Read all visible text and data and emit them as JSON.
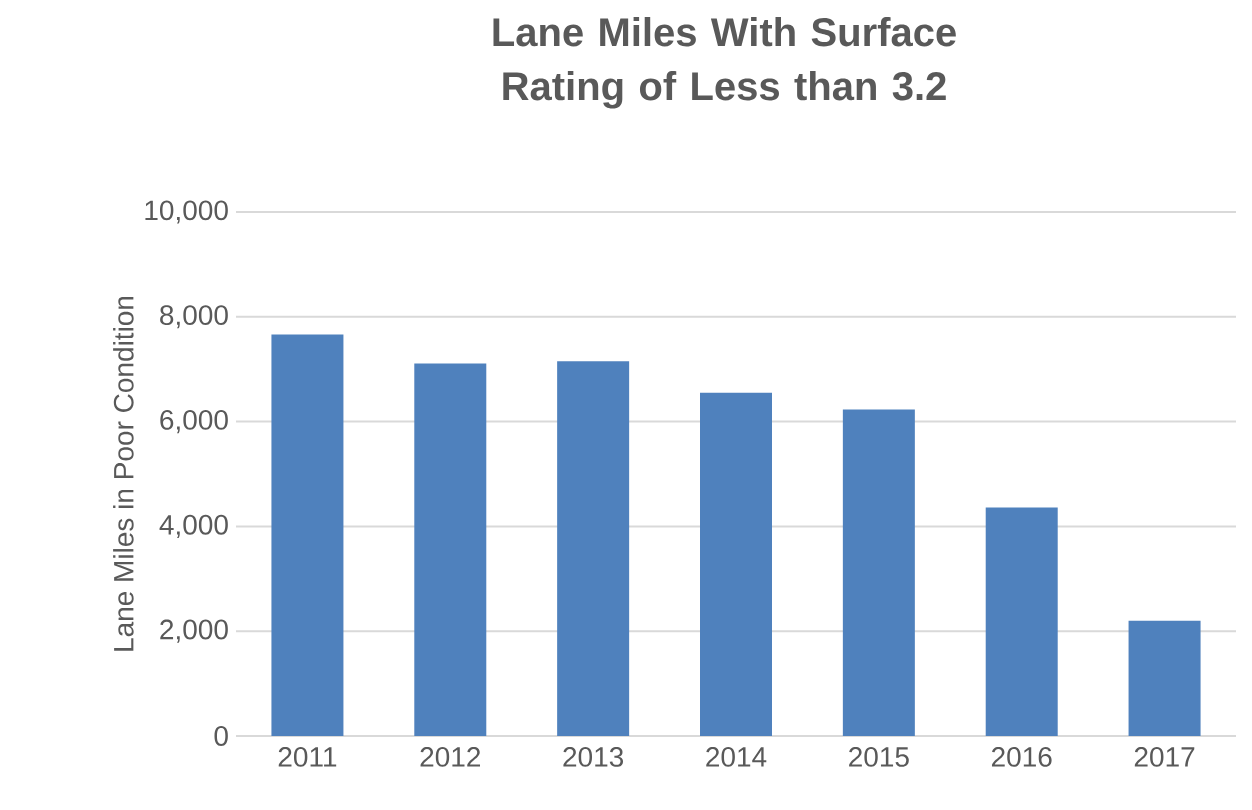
{
  "chart_data": {
    "type": "bar",
    "title": "Lane Miles With Surface Rating of Less than 3.2",
    "ylabel": "Lane Miles in Poor Condition",
    "categories": [
      "2011",
      "2012",
      "2013",
      "2014",
      "2015",
      "2016",
      "2017"
    ],
    "values": [
      7660,
      7110,
      7150,
      6550,
      6230,
      4360,
      2200
    ],
    "color": "#4f81bd",
    "ylim": [
      0,
      10000
    ],
    "yticks": [
      0,
      {
        "value": 2000,
        "label": "2,000"
      },
      {
        "value": 4000,
        "label": "4,000"
      },
      {
        "value": 6000,
        "label": "6,000"
      },
      {
        "value": 8000,
        "label": "8,000"
      },
      {
        "value": 10000,
        "label": "10,000"
      }
    ],
    "grid": "y"
  }
}
